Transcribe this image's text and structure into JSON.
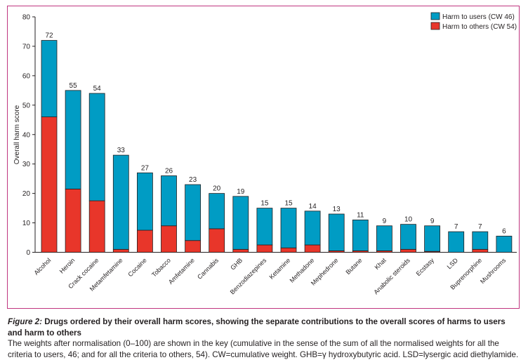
{
  "chart_data": {
    "type": "bar",
    "stacked": true,
    "ylabel": "Overall harm score",
    "xlabel": "",
    "ylim": [
      0,
      80
    ],
    "yticks": [
      0,
      10,
      20,
      30,
      40,
      50,
      60,
      70,
      80
    ],
    "grid": false,
    "legend_position": "top-right",
    "categories": [
      "Alcohol",
      "Heroin",
      "Crack cocaine",
      "Metamfetamine",
      "Cocaine",
      "Tobacco",
      "Amfetamine",
      "Cannabis",
      "GHB",
      "Benzodiazepines",
      "Ketamine",
      "Methadone",
      "Mephedrone",
      "Butane",
      "Khat",
      "Anabolic steroids",
      "Ecstasy",
      "LSD",
      "Buprenorphine",
      "Mushrooms"
    ],
    "totals": [
      72,
      55,
      54,
      33,
      27,
      26,
      23,
      20,
      19,
      15,
      15,
      14,
      13,
      11,
      9,
      10,
      9,
      7,
      7,
      6
    ],
    "series": [
      {
        "name": "Harm to others (CW 54)",
        "color": "#e8362a",
        "values": [
          46,
          21.5,
          17.5,
          1,
          7.5,
          9,
          4,
          8,
          1,
          2.5,
          1.5,
          2.5,
          0.5,
          0.5,
          0.5,
          1,
          0.3,
          0,
          1,
          0
        ]
      },
      {
        "name": "Harm to users (CW 46)",
        "color": "#009cc4",
        "values": [
          26,
          33.5,
          36.5,
          32,
          19.5,
          17,
          19,
          12,
          18,
          12.5,
          13.5,
          11.5,
          12.5,
          10.5,
          8.5,
          8.5,
          8.7,
          7,
          6,
          5.5
        ]
      }
    ]
  },
  "legend": {
    "users_label": "Harm to users (CW 46)",
    "others_label": "Harm to others (CW 54)",
    "users_color": "#009cc4",
    "others_color": "#e8362a"
  },
  "caption": {
    "figure_label": "Figure 2:",
    "heading": "Drugs ordered by their overall harm scores, showing the separate contributions to the overall scores of harms to users and harm to others",
    "body": "The weights after normalisation (0–100) are shown in the key (cumulative in the sense of the sum of all the normalised weights for all the criteria to users, 46; and for all the criteria to others, 54). CW=cumulative weight. GHB=γ hydroxybutyric acid. LSD=lysergic acid diethylamide."
  }
}
